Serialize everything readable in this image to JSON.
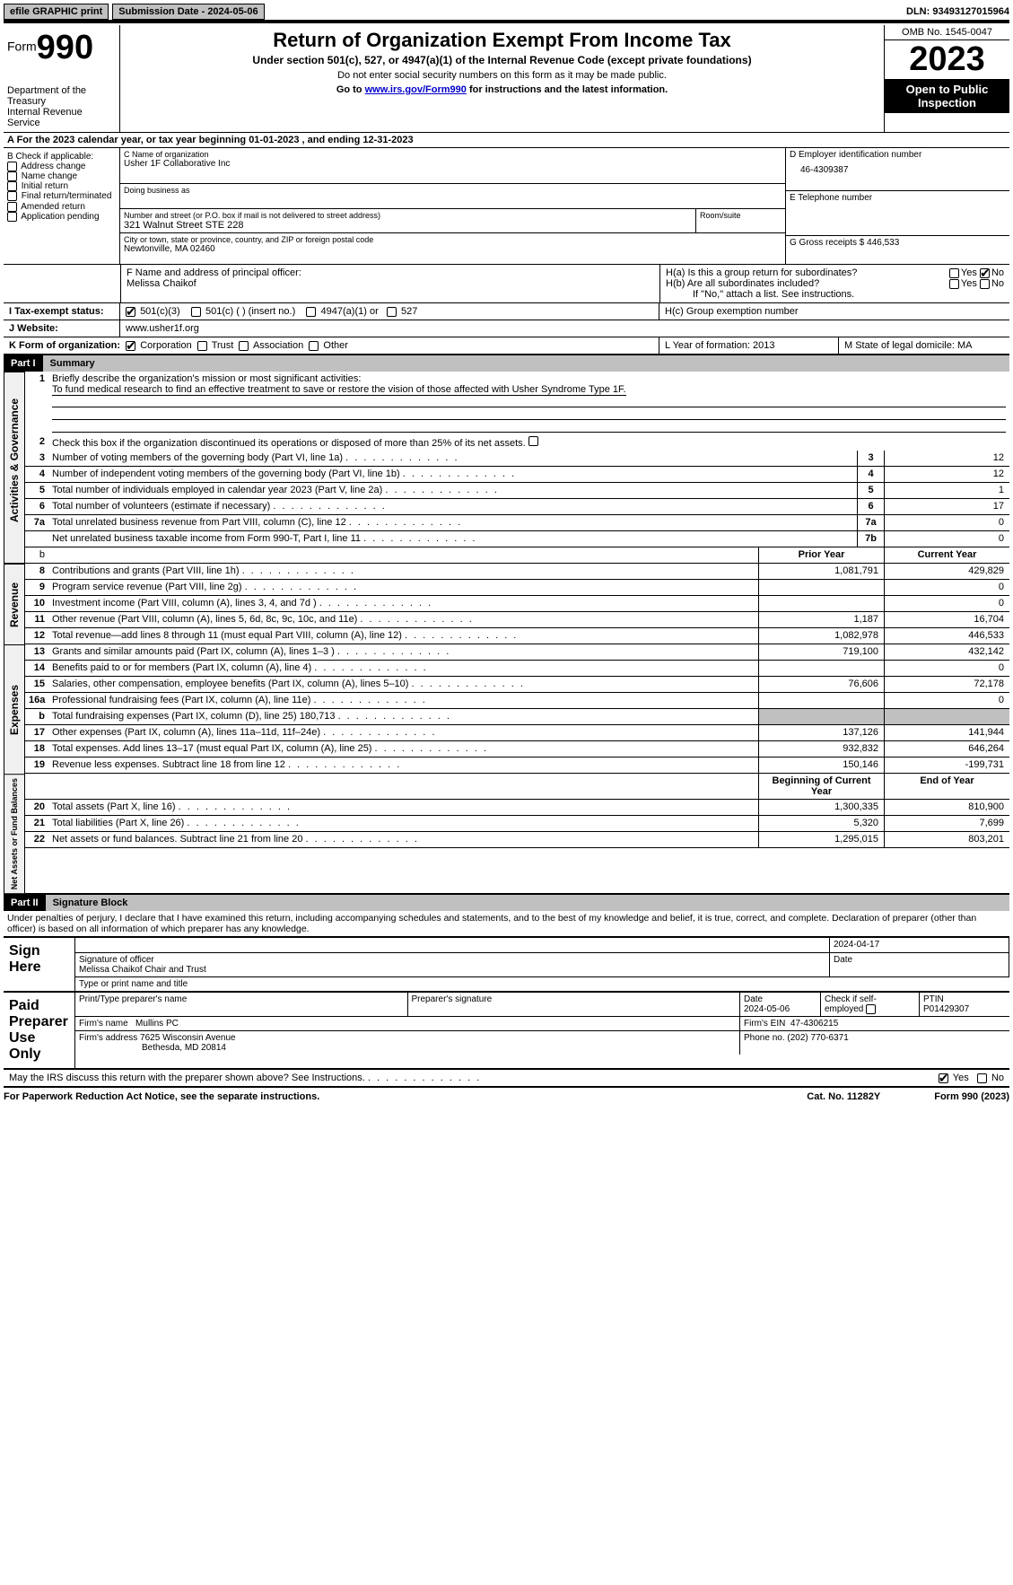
{
  "topbar": {
    "efile": "efile GRAPHIC print",
    "submission": "Submission Date - 2024-05-06",
    "dln": "DLN: 93493127015964"
  },
  "header": {
    "form_label": "Form",
    "form_num": "990",
    "dept": "Department of the Treasury",
    "irs": "Internal Revenue Service",
    "title": "Return of Organization Exempt From Income Tax",
    "subtitle": "Under section 501(c), 527, or 4947(a)(1) of the Internal Revenue Code (except private foundations)",
    "note1": "Do not enter social security numbers on this form as it may be made public.",
    "note2_pre": "Go to ",
    "note2_link": "www.irs.gov/Form990",
    "note2_post": " for instructions and the latest information.",
    "omb": "OMB No. 1545-0047",
    "year": "2023",
    "open_pub": "Open to Public Inspection"
  },
  "section_a": "A  For the 2023 calendar year, or tax year beginning 01-01-2023   , and ending 12-31-2023",
  "col_b": {
    "label": "B Check if applicable:",
    "opts": [
      "Address change",
      "Name change",
      "Initial return",
      "Final return/terminated",
      "Amended return",
      "Application pending"
    ]
  },
  "col_c": {
    "name_label": "C Name of organization",
    "name": "Usher 1F Collaborative Inc",
    "dba_label": "Doing business as",
    "addr_label": "Number and street (or P.O. box if mail is not delivered to street address)",
    "addr": "321 Walnut Street STE 228",
    "room_label": "Room/suite",
    "city_label": "City or town, state or province, country, and ZIP or foreign postal code",
    "city": "Newtonville, MA  02460",
    "officer_label": "F  Name and address of principal officer:",
    "officer": "Melissa Chaikof"
  },
  "col_d": {
    "ein_label": "D Employer identification number",
    "ein": "46-4309387",
    "tel_label": "E Telephone number",
    "receipts_label": "G Gross receipts $ ",
    "receipts": "446,533"
  },
  "h": {
    "a_label": "H(a)  Is this a group return for subordinates?",
    "b_label": "H(b)  Are all subordinates included?",
    "b_note": "If \"No,\" attach a list. See instructions.",
    "c_label": "H(c)  Group exemption number",
    "yes": "Yes",
    "no": "No"
  },
  "tax_status": {
    "label": "I  Tax-exempt status:",
    "o1": "501(c)(3)",
    "o2": "501(c) (  ) (insert no.)",
    "o3": "4947(a)(1) or",
    "o4": "527"
  },
  "website": {
    "label": "J  Website:",
    "value": "www.usher1f.org"
  },
  "k": {
    "label": "K Form of organization:",
    "o1": "Corporation",
    "o2": "Trust",
    "o3": "Association",
    "o4": "Other"
  },
  "l": "L Year of formation: 2013",
  "m": "M State of legal domicile: MA",
  "part1": {
    "hdr": "Part I",
    "title": "Summary",
    "q1_label": "Briefly describe the organization's mission or most significant activities:",
    "q1_text": "To fund medical research to find an effective treatment to save or restore the vision of those affected with Usher Syndrome Type 1F.",
    "q2": "Check this box        if the organization discontinued its operations or disposed of more than 25% of its net assets.",
    "lines_gov": [
      {
        "n": "3",
        "d": "Number of voting members of the governing body (Part VI, line 1a)",
        "b": "3",
        "v": "12"
      },
      {
        "n": "4",
        "d": "Number of independent voting members of the governing body (Part VI, line 1b)",
        "b": "4",
        "v": "12"
      },
      {
        "n": "5",
        "d": "Total number of individuals employed in calendar year 2023 (Part V, line 2a)",
        "b": "5",
        "v": "1"
      },
      {
        "n": "6",
        "d": "Total number of volunteers (estimate if necessary)",
        "b": "6",
        "v": "17"
      },
      {
        "n": "7a",
        "d": "Total unrelated business revenue from Part VIII, column (C), line 12",
        "b": "7a",
        "v": "0"
      },
      {
        "n": "",
        "d": "Net unrelated business taxable income from Form 990-T, Part I, line 11",
        "b": "7b",
        "v": "0"
      }
    ],
    "col_hdrs": {
      "prior": "Prior Year",
      "current": "Current Year"
    },
    "lines_rev": [
      {
        "n": "8",
        "d": "Contributions and grants (Part VIII, line 1h)",
        "p": "1,081,791",
        "c": "429,829"
      },
      {
        "n": "9",
        "d": "Program service revenue (Part VIII, line 2g)",
        "p": "",
        "c": "0"
      },
      {
        "n": "10",
        "d": "Investment income (Part VIII, column (A), lines 3, 4, and 7d )",
        "p": "",
        "c": "0"
      },
      {
        "n": "11",
        "d": "Other revenue (Part VIII, column (A), lines 5, 6d, 8c, 9c, 10c, and 11e)",
        "p": "1,187",
        "c": "16,704"
      },
      {
        "n": "12",
        "d": "Total revenue—add lines 8 through 11 (must equal Part VIII, column (A), line 12)",
        "p": "1,082,978",
        "c": "446,533"
      }
    ],
    "lines_exp": [
      {
        "n": "13",
        "d": "Grants and similar amounts paid (Part IX, column (A), lines 1–3 )",
        "p": "719,100",
        "c": "432,142"
      },
      {
        "n": "14",
        "d": "Benefits paid to or for members (Part IX, column (A), line 4)",
        "p": "",
        "c": "0"
      },
      {
        "n": "15",
        "d": "Salaries, other compensation, employee benefits (Part IX, column (A), lines 5–10)",
        "p": "76,606",
        "c": "72,178"
      },
      {
        "n": "16a",
        "d": "Professional fundraising fees (Part IX, column (A), line 11e)",
        "p": "",
        "c": "0"
      },
      {
        "n": "b",
        "d": "Total fundraising expenses (Part IX, column (D), line 25) 180,713",
        "p": "shade",
        "c": "shade"
      },
      {
        "n": "17",
        "d": "Other expenses (Part IX, column (A), lines 11a–11d, 11f–24e)",
        "p": "137,126",
        "c": "141,944"
      },
      {
        "n": "18",
        "d": "Total expenses. Add lines 13–17 (must equal Part IX, column (A), line 25)",
        "p": "932,832",
        "c": "646,264"
      },
      {
        "n": "19",
        "d": "Revenue less expenses. Subtract line 18 from line 12",
        "p": "150,146",
        "c": "-199,731"
      }
    ],
    "net_hdrs": {
      "begin": "Beginning of Current Year",
      "end": "End of Year"
    },
    "lines_net": [
      {
        "n": "20",
        "d": "Total assets (Part X, line 16)",
        "p": "1,300,335",
        "c": "810,900"
      },
      {
        "n": "21",
        "d": "Total liabilities (Part X, line 26)",
        "p": "5,320",
        "c": "7,699"
      },
      {
        "n": "22",
        "d": "Net assets or fund balances. Subtract line 21 from line 20",
        "p": "1,295,015",
        "c": "803,201"
      }
    ],
    "vlabels": {
      "gov": "Activities & Governance",
      "rev": "Revenue",
      "exp": "Expenses",
      "net": "Net Assets or Fund Balances"
    }
  },
  "part2": {
    "hdr": "Part II",
    "title": "Signature Block",
    "penalty": "Under penalties of perjury, I declare that I have examined this return, including accompanying schedules and statements, and to the best of my knowledge and belief, it is true, correct, and complete. Declaration of preparer (other than officer) is based on all information of which preparer has any knowledge."
  },
  "sign": {
    "label": "Sign Here",
    "sig_label": "Signature of officer",
    "officer": "Melissa Chaikof  Chair and Trust",
    "type_label": "Type or print name and title",
    "date_label": "Date",
    "date": "2024-04-17"
  },
  "preparer": {
    "label": "Paid Preparer Use Only",
    "name_label": "Print/Type preparer's name",
    "sig_label": "Preparer's signature",
    "date_label": "Date",
    "date": "2024-05-06",
    "self_label": "Check        if self-employed",
    "ptin_label": "PTIN",
    "ptin": "P01429307",
    "firm_name_label": "Firm's name",
    "firm_name": "Mullins PC",
    "firm_ein_label": "Firm's EIN",
    "firm_ein": "47-4306215",
    "firm_addr_label": "Firm's address",
    "firm_addr": "7625 Wisconsin Avenue",
    "firm_city": "Bethesda, MD  20814",
    "phone_label": "Phone no.",
    "phone": "(202) 770-6371"
  },
  "discuss": "May the IRS discuss this return with the preparer shown above? See Instructions.",
  "footer": {
    "paperwork": "For Paperwork Reduction Act Notice, see the separate instructions.",
    "cat": "Cat. No. 11282Y",
    "form": "Form 990 (2023)"
  }
}
